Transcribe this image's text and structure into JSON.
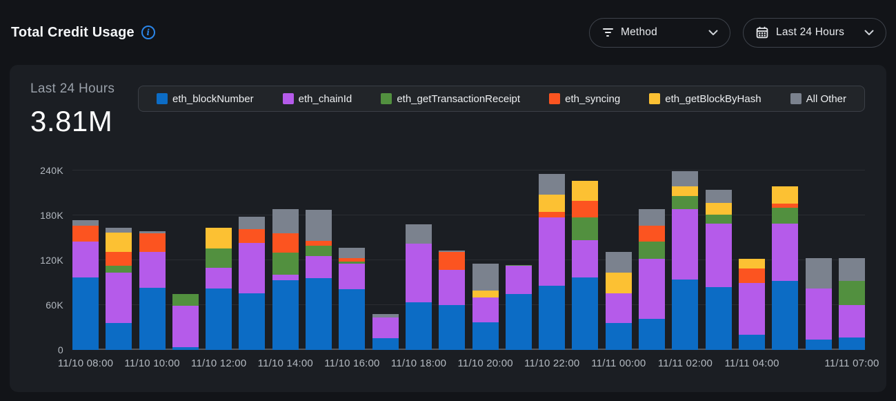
{
  "header": {
    "title": "Total Credit Usage"
  },
  "filters": {
    "method": {
      "label": "Method"
    },
    "time_range": {
      "label": "Last 24 Hours"
    }
  },
  "panel": {
    "subtitle": "Last 24 Hours",
    "total": "3.81M"
  },
  "colors": {
    "page_bg": "#121418",
    "panel_bg": "#1b1e23",
    "accent_blue": "#2b86e9"
  },
  "chart_data": {
    "type": "bar",
    "stacked": true,
    "title": "",
    "xlabel": "",
    "ylabel": "",
    "value_unit": "K",
    "ylim": [
      0,
      240
    ],
    "grid": "horizontal",
    "legend_position": "top",
    "categories": [
      "11/10 08:00",
      "11/10 09:00",
      "11/10 10:00",
      "11/10 11:00",
      "11/10 12:00",
      "11/10 13:00",
      "11/10 14:00",
      "11/10 15:00",
      "11/10 16:00",
      "11/10 17:00",
      "11/10 18:00",
      "11/10 19:00",
      "11/10 20:00",
      "11/10 21:00",
      "11/10 22:00",
      "11/10 23:00",
      "11/11 00:00",
      "11/11 01:00",
      "11/11 02:00",
      "11/11 03:00",
      "11/11 04:00",
      "11/11 05:00",
      "11/11 06:00",
      "11/11 07:00"
    ],
    "series": [
      {
        "name": "eth_blockNumber",
        "color": "#0c6cc5",
        "values": [
          97,
          36,
          83,
          4,
          82,
          76,
          93,
          96,
          81,
          16,
          64,
          60,
          37,
          75,
          86,
          97,
          36,
          42,
          94,
          84,
          20,
          92,
          14,
          17
        ]
      },
      {
        "name": "eth_chainId",
        "color": "#b55bea",
        "values": [
          48,
          67,
          48,
          55,
          28,
          67,
          8,
          30,
          34,
          27,
          78,
          47,
          33,
          38,
          91,
          50,
          40,
          80,
          94,
          85,
          70,
          77,
          68,
          43
        ]
      },
      {
        "name": "eth_getTransactionReceipt",
        "color": "#52903f",
        "values": [
          0,
          10,
          0,
          16,
          26,
          0,
          29,
          13,
          3,
          0,
          0,
          0,
          0,
          1,
          0,
          30,
          0,
          23,
          18,
          12,
          0,
          21,
          0,
          32
        ]
      },
      {
        "name": "eth_syncing",
        "color": "#fc5420",
        "values": [
          21,
          18,
          25,
          0,
          0,
          19,
          26,
          7,
          5,
          0,
          0,
          24,
          0,
          0,
          8,
          22,
          0,
          21,
          0,
          0,
          19,
          6,
          0,
          0
        ]
      },
      {
        "name": "eth_getBlockByHash",
        "color": "#fcc133",
        "values": [
          0,
          26,
          0,
          0,
          27,
          0,
          0,
          0,
          0,
          0,
          0,
          0,
          9,
          0,
          23,
          27,
          27,
          0,
          13,
          16,
          13,
          23,
          0,
          0
        ]
      },
      {
        "name": "All Other",
        "color": "#7b828e",
        "values": [
          8,
          6,
          3,
          0,
          0,
          16,
          32,
          41,
          14,
          5,
          26,
          2,
          36,
          0,
          27,
          0,
          28,
          22,
          20,
          17,
          0,
          0,
          41,
          31
        ]
      }
    ],
    "yticks": [
      {
        "value": 0,
        "label": "0"
      },
      {
        "value": 60,
        "label": "60K"
      },
      {
        "value": 120,
        "label": "120K"
      },
      {
        "value": 180,
        "label": "180K"
      },
      {
        "value": 240,
        "label": "240K"
      }
    ],
    "xticks": [
      {
        "index": 0,
        "label": "11/10 08:00"
      },
      {
        "index": 2,
        "label": "11/10 10:00"
      },
      {
        "index": 4,
        "label": "11/10 12:00"
      },
      {
        "index": 6,
        "label": "11/10 14:00"
      },
      {
        "index": 8,
        "label": "11/10 16:00"
      },
      {
        "index": 10,
        "label": "11/10 18:00"
      },
      {
        "index": 12,
        "label": "11/10 20:00"
      },
      {
        "index": 14,
        "label": "11/10 22:00"
      },
      {
        "index": 16,
        "label": "11/11 00:00"
      },
      {
        "index": 18,
        "label": "11/11 02:00"
      },
      {
        "index": 20,
        "label": "11/11 04:00"
      },
      {
        "index": 23,
        "label": "11/11 07:00"
      }
    ]
  }
}
